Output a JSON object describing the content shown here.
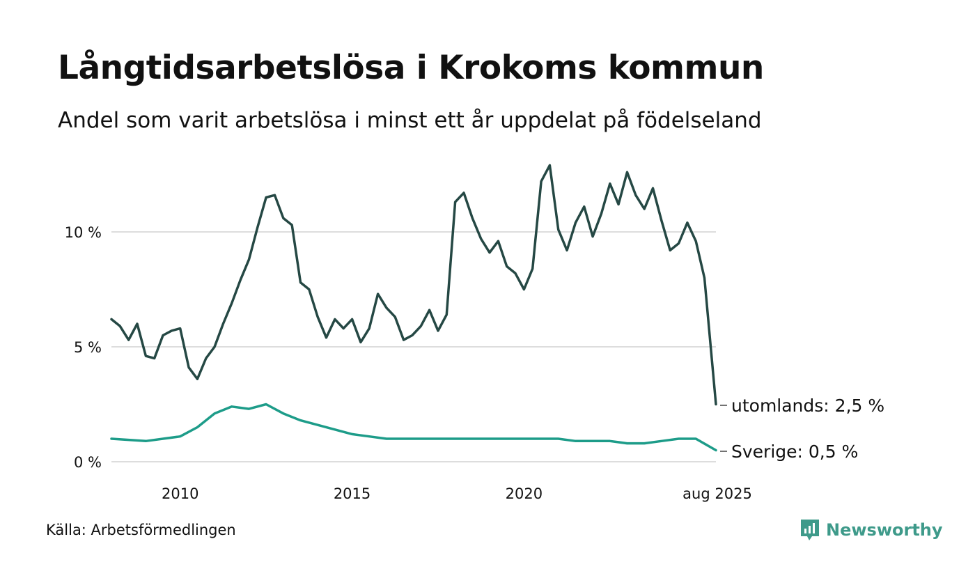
{
  "header": {
    "title": "Långtidsarbetslösa i Krokoms kommun",
    "subtitle": "Andel som varit arbetslösa i minst ett år uppdelat på födelseland"
  },
  "footer": {
    "source": "Källa: Arbetsförmedlingen",
    "brand": "Newsworthy"
  },
  "colors": {
    "utomlands": "#254844",
    "sverige": "#1d9c89",
    "grid": "#dddddd",
    "brand": "#3e9a8a"
  },
  "chart_data": {
    "type": "line",
    "title": "Långtidsarbetslösa i Krokoms kommun",
    "subtitle": "Andel som varit arbetslösa i minst ett år uppdelat på födelseland",
    "xlabel": "",
    "ylabel": "",
    "ylim": [
      0,
      13
    ],
    "y_ticks": [
      0,
      5,
      10
    ],
    "y_tick_labels": [
      "0 %",
      "5 %",
      "10 %"
    ],
    "x_ticks": [
      "2010",
      "2015",
      "2020",
      "aug 2025"
    ],
    "grid": true,
    "x_range": [
      "2008-01",
      "2025-08"
    ],
    "series": [
      {
        "name": "utomlands",
        "end_label": "utomlands: 2,5 %",
        "points": [
          [
            "2008-01",
            6.2
          ],
          [
            "2008-04",
            5.9
          ],
          [
            "2008-07",
            5.3
          ],
          [
            "2008-10",
            6.0
          ],
          [
            "2009-01",
            4.6
          ],
          [
            "2009-04",
            4.5
          ],
          [
            "2009-07",
            5.5
          ],
          [
            "2009-10",
            5.7
          ],
          [
            "2010-01",
            5.8
          ],
          [
            "2010-04",
            4.1
          ],
          [
            "2010-07",
            3.6
          ],
          [
            "2010-10",
            4.5
          ],
          [
            "2011-01",
            5.0
          ],
          [
            "2011-04",
            6.0
          ],
          [
            "2011-07",
            6.9
          ],
          [
            "2011-10",
            7.9
          ],
          [
            "2012-01",
            8.8
          ],
          [
            "2012-04",
            10.2
          ],
          [
            "2012-07",
            11.5
          ],
          [
            "2012-10",
            11.6
          ],
          [
            "2013-01",
            10.6
          ],
          [
            "2013-04",
            10.3
          ],
          [
            "2013-07",
            7.8
          ],
          [
            "2013-10",
            7.5
          ],
          [
            "2014-01",
            6.3
          ],
          [
            "2014-04",
            5.4
          ],
          [
            "2014-07",
            6.2
          ],
          [
            "2014-10",
            5.8
          ],
          [
            "2015-01",
            6.2
          ],
          [
            "2015-04",
            5.2
          ],
          [
            "2015-07",
            5.8
          ],
          [
            "2015-10",
            7.3
          ],
          [
            "2016-01",
            6.7
          ],
          [
            "2016-04",
            6.3
          ],
          [
            "2016-07",
            5.3
          ],
          [
            "2016-10",
            5.5
          ],
          [
            "2017-01",
            5.9
          ],
          [
            "2017-04",
            6.6
          ],
          [
            "2017-07",
            5.7
          ],
          [
            "2017-10",
            6.4
          ],
          [
            "2018-01",
            11.3
          ],
          [
            "2018-04",
            11.7
          ],
          [
            "2018-07",
            10.6
          ],
          [
            "2018-10",
            9.7
          ],
          [
            "2019-01",
            9.1
          ],
          [
            "2019-04",
            9.6
          ],
          [
            "2019-07",
            8.5
          ],
          [
            "2019-10",
            8.2
          ],
          [
            "2020-01",
            7.5
          ],
          [
            "2020-04",
            8.4
          ],
          [
            "2020-07",
            12.2
          ],
          [
            "2020-10",
            12.9
          ],
          [
            "2021-01",
            10.1
          ],
          [
            "2021-04",
            9.2
          ],
          [
            "2021-07",
            10.4
          ],
          [
            "2021-10",
            11.1
          ],
          [
            "2022-01",
            9.8
          ],
          [
            "2022-04",
            10.8
          ],
          [
            "2022-07",
            12.1
          ],
          [
            "2022-10",
            11.2
          ],
          [
            "2023-01",
            12.6
          ],
          [
            "2023-04",
            11.6
          ],
          [
            "2023-07",
            11.0
          ],
          [
            "2023-10",
            11.9
          ],
          [
            "2024-01",
            10.5
          ],
          [
            "2024-04",
            9.2
          ],
          [
            "2024-07",
            9.5
          ],
          [
            "2024-10",
            10.4
          ],
          [
            "2025-01",
            9.6
          ],
          [
            "2025-04",
            8.0
          ],
          [
            "2025-08",
            2.5
          ]
        ]
      },
      {
        "name": "Sverige",
        "end_label": "Sverige: 0,5 %",
        "points": [
          [
            "2008-01",
            1.0
          ],
          [
            "2009-01",
            0.9
          ],
          [
            "2010-01",
            1.1
          ],
          [
            "2010-07",
            1.5
          ],
          [
            "2011-01",
            2.1
          ],
          [
            "2011-07",
            2.4
          ],
          [
            "2012-01",
            2.3
          ],
          [
            "2012-07",
            2.5
          ],
          [
            "2013-01",
            2.1
          ],
          [
            "2013-07",
            1.8
          ],
          [
            "2014-01",
            1.6
          ],
          [
            "2014-07",
            1.4
          ],
          [
            "2015-01",
            1.2
          ],
          [
            "2015-07",
            1.1
          ],
          [
            "2016-01",
            1.0
          ],
          [
            "2016-07",
            1.0
          ],
          [
            "2017-01",
            1.0
          ],
          [
            "2017-07",
            1.0
          ],
          [
            "2018-01",
            1.0
          ],
          [
            "2018-07",
            1.0
          ],
          [
            "2019-01",
            1.0
          ],
          [
            "2019-07",
            1.0
          ],
          [
            "2020-01",
            1.0
          ],
          [
            "2020-07",
            1.0
          ],
          [
            "2021-01",
            1.0
          ],
          [
            "2021-07",
            0.9
          ],
          [
            "2022-01",
            0.9
          ],
          [
            "2022-07",
            0.9
          ],
          [
            "2023-01",
            0.8
          ],
          [
            "2023-07",
            0.8
          ],
          [
            "2024-01",
            0.9
          ],
          [
            "2024-07",
            1.0
          ],
          [
            "2025-01",
            1.0
          ],
          [
            "2025-08",
            0.5
          ]
        ]
      }
    ]
  }
}
